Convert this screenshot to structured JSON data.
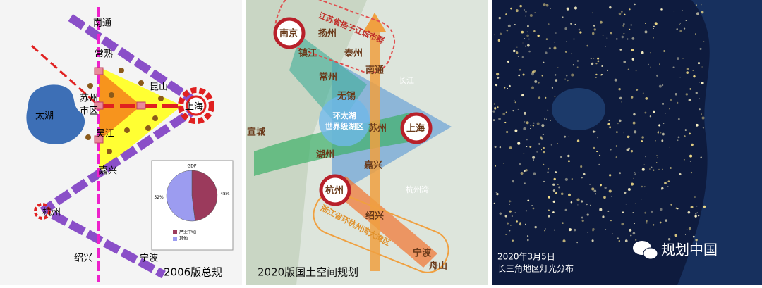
{
  "panel1": {
    "labels": {
      "nantong": "南通",
      "changshu": "常熟",
      "kunshan": "昆山",
      "suzhou": "苏州",
      "suzhou2": "市区",
      "taihu": "太湖",
      "shanghai": "上海",
      "wujiang": "吴江",
      "jiaxing": "嘉兴",
      "hangzhou": "杭州",
      "shaoxing": "绍兴",
      "ningbo": "宁波"
    },
    "caption": "2006版总规",
    "pie": {
      "title": "GDP",
      "values": [
        48,
        52
      ],
      "value_labels": [
        "48%",
        "52%"
      ],
      "legend": [
        "产业中轴",
        "其他"
      ],
      "colors": [
        "#9b3a5c",
        "#9c9cf0"
      ]
    }
  },
  "panel2": {
    "labels": {
      "nanjing": "南京",
      "yangzhou": "扬州",
      "taizhou": "泰州",
      "zhenjiang": "镇江",
      "changzhou": "常州",
      "nantong": "南通",
      "wuxi": "无锡",
      "suzhou": "苏州",
      "shanghai": "上海",
      "xuancheng": "宣城",
      "huzhou": "湖州",
      "jiaxing": "嘉兴",
      "hangzhou": "杭州",
      "shaoxing": "绍兴",
      "ningbo": "宁波",
      "zhoushan": "舟山",
      "lake1": "环太湖",
      "lake2": "世界级湖区",
      "bay": "杭州湾",
      "river": "长江",
      "jiangsu": "江苏省扬子江城市群",
      "zhejiang": "浙江省环杭州湾大湾区"
    },
    "caption": "2020版国土空间规划"
  },
  "panel3": {
    "date": "2020年3月5日",
    "caption": "长三角地区灯光分布",
    "brand": "规划中国"
  }
}
